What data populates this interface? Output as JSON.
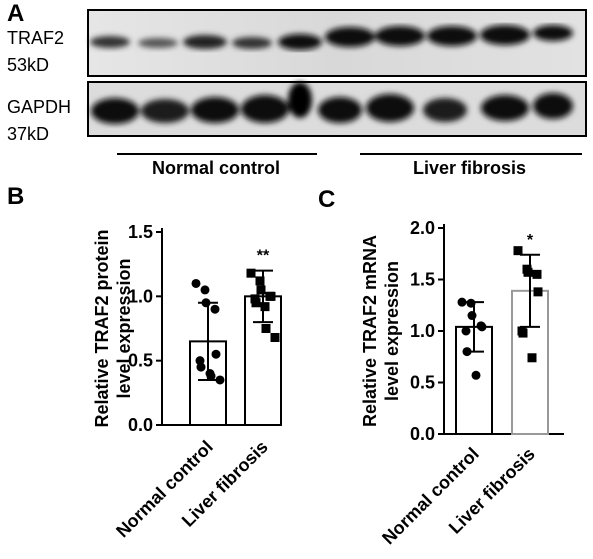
{
  "panel_a": {
    "letter": "A",
    "blots": [
      {
        "name": "TRAF2",
        "size": "53kD"
      },
      {
        "name": "GAPDH",
        "size": "37kD"
      }
    ],
    "groups": [
      "Normal control",
      "Liver fibrosis"
    ]
  },
  "panel_b": {
    "letter": "B"
  },
  "panel_c": {
    "letter": "C"
  },
  "chart_data": [
    {
      "type": "bar",
      "panel": "B",
      "ylabel": "Relative TRAF2 protein level expression",
      "ylim": [
        0,
        1.5
      ],
      "yticks": [
        "0.0",
        "0.5",
        "1.0",
        "1.5"
      ],
      "categories": [
        "Normal control",
        "Liver fibrosis"
      ],
      "values": [
        0.65,
        1.0
      ],
      "errors": [
        0.3,
        0.2
      ],
      "significance": [
        "",
        "**"
      ],
      "bar_edge_colors": [
        "#000000",
        "#000000"
      ],
      "points": [
        [
          1.1,
          1.05,
          0.95,
          0.9,
          0.55,
          0.5,
          0.45,
          0.4,
          0.38,
          0.35
        ],
        [
          1.18,
          1.12,
          1.05,
          1.0,
          1.0,
          0.98,
          0.95,
          0.92,
          0.75,
          0.68
        ]
      ]
    },
    {
      "type": "bar",
      "panel": "C",
      "ylabel": "Relative TRAF2 mRNA level expression",
      "ylim": [
        0,
        2.0
      ],
      "yticks": [
        "0.0",
        "0.5",
        "1.0",
        "1.5",
        "2.0"
      ],
      "categories": [
        "Normal control",
        "Liver fibrosis"
      ],
      "values": [
        1.04,
        1.39
      ],
      "errors": [
        0.24,
        0.35
      ],
      "significance": [
        "",
        "*"
      ],
      "bar_edge_colors": [
        "#000000",
        "#999999"
      ],
      "points": [
        [
          1.28,
          1.27,
          1.15,
          1.05,
          1.04,
          1.0,
          0.8,
          0.57
        ],
        [
          1.78,
          1.6,
          1.57,
          1.55,
          1.38,
          1.0,
          0.98,
          0.74
        ]
      ]
    }
  ]
}
